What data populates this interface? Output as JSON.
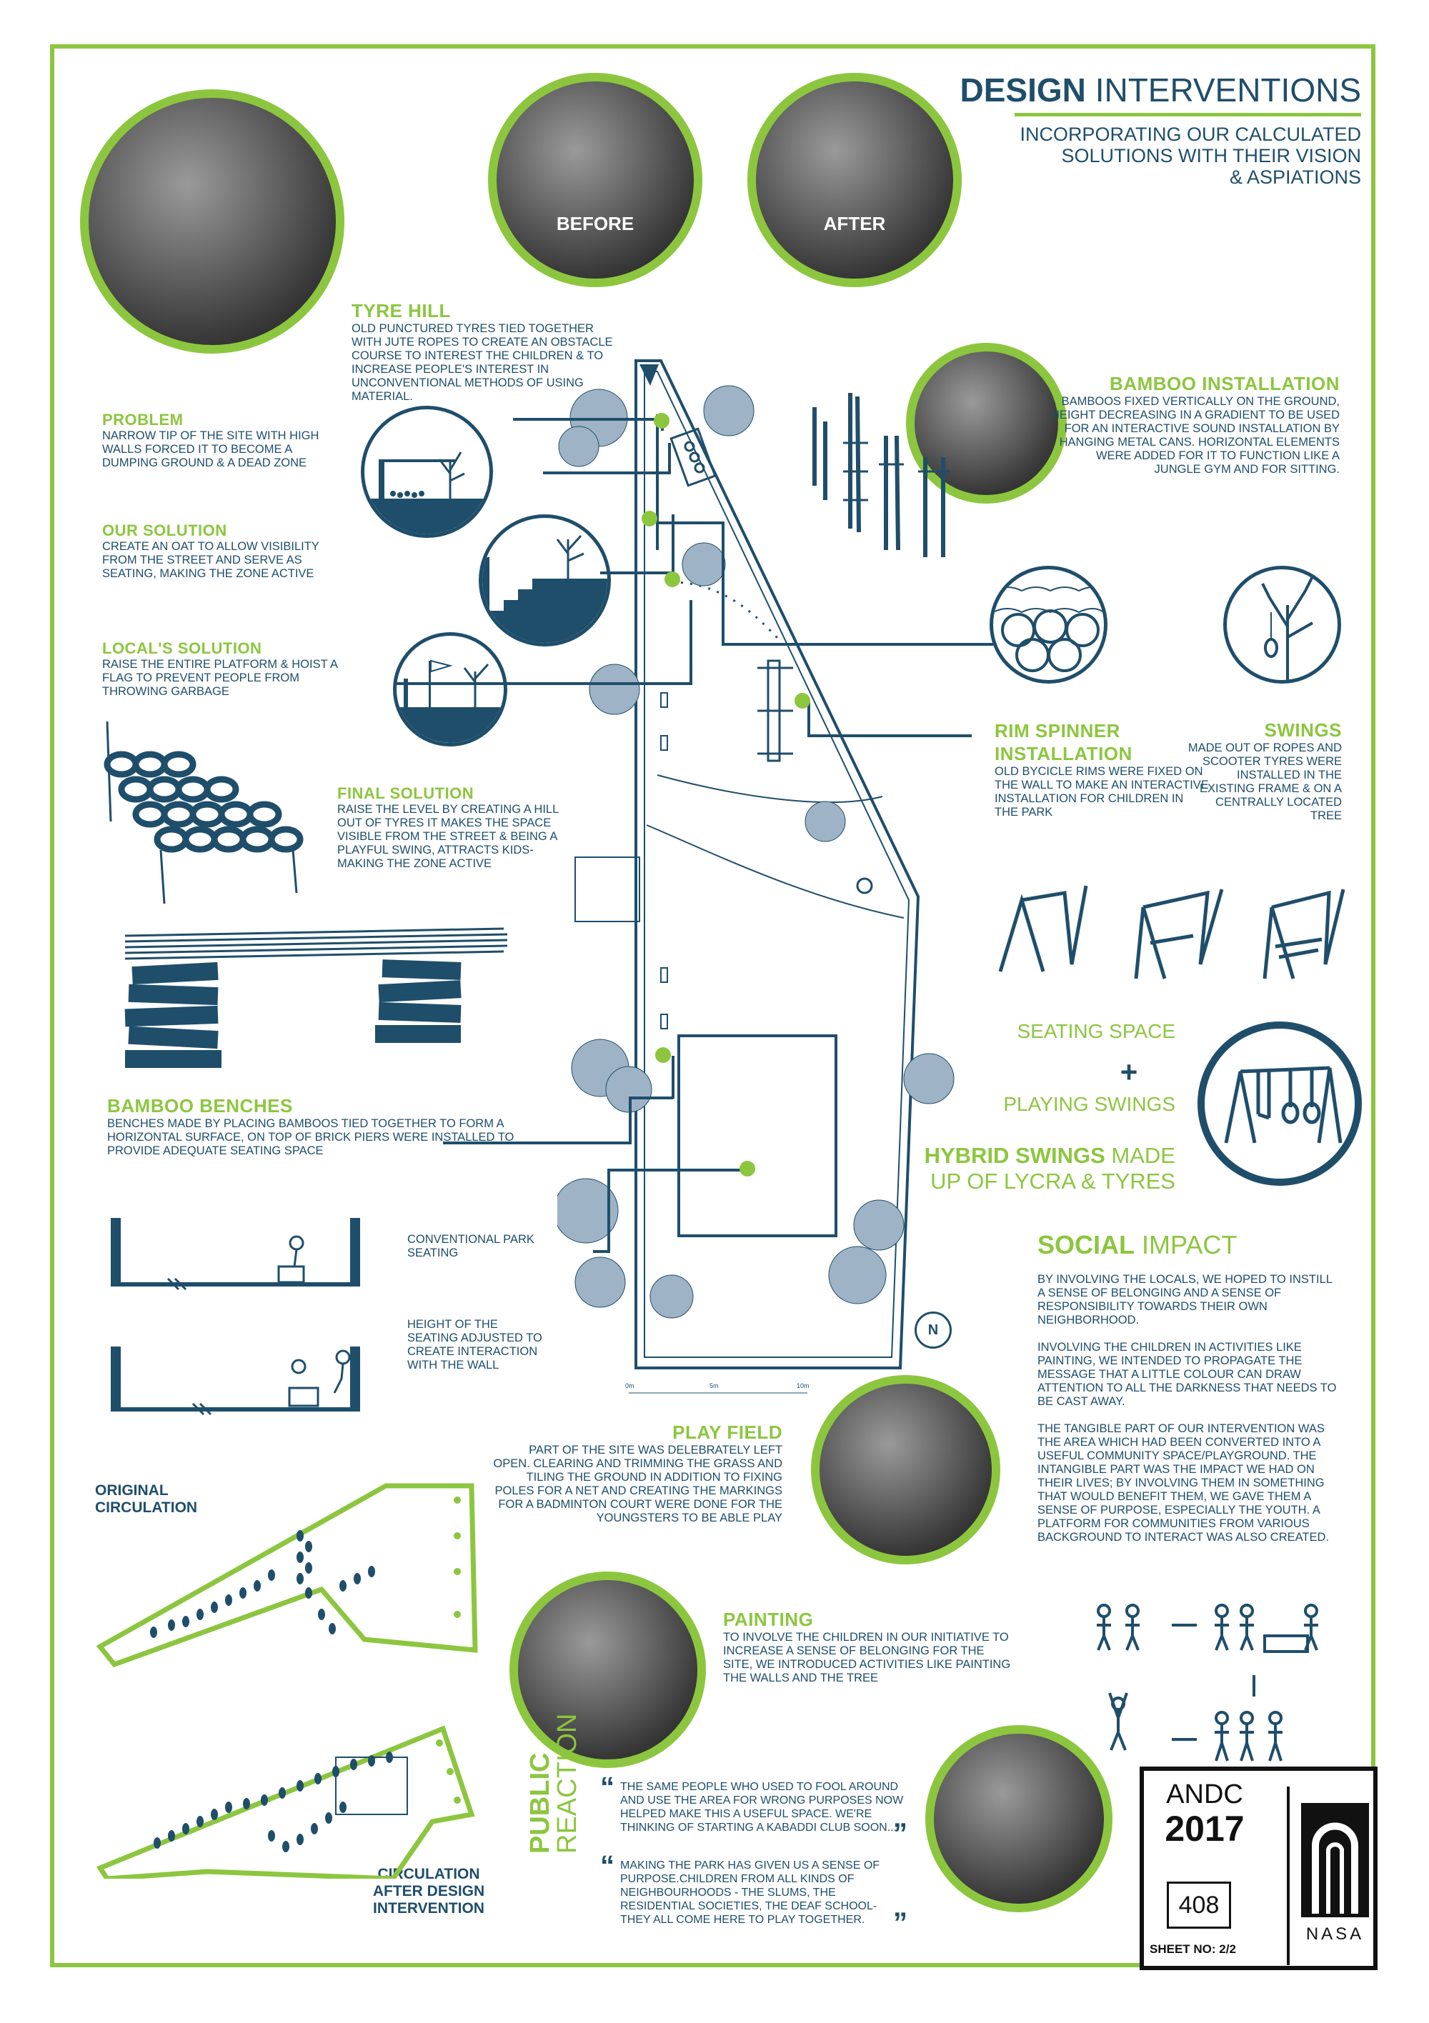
{
  "header": {
    "title_bold": "DESIGN",
    "title_light": "INTERVENTIONS",
    "subtitle": [
      "INCORPORATING OUR CALCULATED",
      "SOLUTIONS WITH THEIR VISION",
      "& ASPIATIONS"
    ]
  },
  "photos": {
    "before_label": "BEFORE",
    "after_label": "AFTER"
  },
  "tyre_hill": {
    "heading": "TYRE HILL",
    "text": "OLD PUNCTURED TYRES TIED TOGETHER WITH JUTE ROPES TO CREATE AN OBSTACLE COURSE TO INTEREST THE CHILDREN & TO INCREASE PEOPLE'S INTEREST IN UNCONVENTIONAL METHODS OF USING MATERIAL."
  },
  "problem": {
    "heading": "PROBLEM",
    "text": "NARROW TIP OF THE SITE WITH HIGH WALLS FORCED IT TO BECOME A DUMPING GROUND & A DEAD ZONE"
  },
  "our_solution": {
    "heading": "OUR SOLUTION",
    "text": "CREATE AN OAT TO ALLOW VISIBILITY FROM THE STREET AND SERVE AS SEATING, MAKING THE ZONE ACTIVE"
  },
  "locals_solution": {
    "heading": "LOCAL'S SOLUTION",
    "text": "RAISE THE ENTIRE PLATFORM & HOIST A FLAG TO PREVENT PEOPLE FROM THROWING GARBAGE"
  },
  "final_solution": {
    "heading": "FINAL SOLUTION",
    "text": "RAISE THE LEVEL BY CREATING A HILL OUT OF TYRES IT MAKES THE SPACE VISIBLE FROM THE STREET & BEING A PLAYFUL SWING, ATTRACTS KIDS-MAKING THE ZONE ACTIVE"
  },
  "bamboo_installation": {
    "heading": "BAMBOO INSTALLATION",
    "text": "BAMBOOS FIXED VERTICALLY ON THE GROUND, HEIGHT DECREASING IN A GRADIENT TO BE USED FOR AN INTERACTIVE SOUND INSTALLATION BY HANGING METAL CANS. HORIZONTAL ELEMENTS WERE ADDED FOR IT TO FUNCTION LIKE A JUNGLE GYM AND FOR SITTING."
  },
  "rim_spinner": {
    "heading": "RIM SPINNER INSTALLATION",
    "text": "OLD BYCICLE RIMS WERE FIXED ON THE WALL TO MAKE AN INTERACTIVE INSTALLATION FOR CHILDREN IN THE PARK"
  },
  "swings": {
    "heading": "SWINGS",
    "text": "MADE OUT OF ROPES AND SCOOTER TYRES WERE INSTALLED IN THE EXISTING FRAME & ON A CENTRALLY LOCATED TREE"
  },
  "hybrid": {
    "seating": "SEATING SPACE",
    "plus": "+",
    "playing": "PLAYING SWINGS",
    "bold": "HYBRID SWINGS",
    "rest1": "MADE",
    "rest2": "UP OF LYCRA & TYRES"
  },
  "bamboo_benches": {
    "heading": "BAMBOO BENCHES",
    "text": "BENCHES MADE BY PLACING BAMBOOS TIED TOGETHER TO FORM A HORIZONTAL SURFACE, ON TOP OF BRICK PIERS WERE INSTALLED TO PROVIDE ADEQUATE SEATING SPACE"
  },
  "seating_notes": {
    "conventional": "CONVENTIONAL PARK SEATING",
    "adjusted": "HEIGHT OF THE SEATING ADJUSTED TO CREATE INTERACTION WITH THE WALL"
  },
  "social_impact": {
    "heading_bold": "SOCIAL",
    "heading_light": "IMPACT",
    "p1": "BY INVOLVING THE LOCALS, WE HOPED TO INSTILL A SENSE OF BELONGING AND A SENSE OF RESPONSIBILITY TOWARDS THEIR OWN NEIGHBORHOOD.",
    "p2": "INVOLVING THE CHILDREN IN ACTIVITIES LIKE PAINTING, WE INTENDED TO PROPAGATE THE MESSAGE THAT A LITTLE COLOUR CAN DRAW ATTENTION TO ALL THE DARKNESS THAT NEEDS TO BE CAST AWAY.",
    "p3": "THE TANGIBLE PART OF OUR INTERVENTION WAS THE AREA WHICH HAD BEEN CONVERTED INTO A USEFUL COMMUNITY SPACE/PLAYGROUND. THE INTANGIBLE PART WAS THE IMPACT WE HAD ON THEIR LIVES; BY INVOLVING THEM IN SOMETHING THAT WOULD BENEFIT THEM, WE GAVE THEM A SENSE OF PURPOSE, ESPECIALLY THE YOUTH. A PLATFORM FOR COMMUNITIES FROM VARIOUS BACKGROUND TO INTERACT WAS ALSO CREATED."
  },
  "play_field": {
    "heading": "PLAY FIELD",
    "text": "PART OF THE SITE WAS DELEBRATELY LEFT OPEN. CLEARING AND TRIMMING THE GRASS AND TILING THE GROUND IN ADDITION TO FIXING POLES FOR A NET AND CREATING THE MARKINGS FOR A BADMINTON COURT WERE DONE FOR THE YOUNGSTERS TO BE ABLE PLAY"
  },
  "painting": {
    "heading": "PAINTING",
    "text": "TO INVOLVE THE CHILDREN IN OUR INITIATIVE TO INCREASE A SENSE OF BELONGING FOR THE SITE, WE INTRODUCED ACTIVITIES LIKE PAINTING THE WALLS AND THE TREE"
  },
  "circulation": {
    "original": [
      "ORIGINAL",
      "CIRCULATION"
    ],
    "after": [
      "CIRCULATION",
      "AFTER DESIGN",
      "INTERVENTION"
    ]
  },
  "public_reaction": {
    "word1": "PUBLIC",
    "word2": "REACTION",
    "quote1": "THE SAME PEOPLE WHO USED TO FOOL AROUND AND USE THE AREA FOR WRONG PURPOSES NOW HELPED MAKE THIS A USEFUL SPACE. WE'RE THINKING OF STARTING A KABADDI CLUB SOON...",
    "quote2": "MAKING THE PARK HAS GIVEN US A SENSE OF PURPOSE.CHILDREN FROM ALL KINDS OF NEIGHBOURHOODS - THE SLUMS, THE RESIDENTIAL SOCIETIES, THE DEAF SCHOOL- THEY ALL COME HERE TO PLAY TOGETHER."
  },
  "scale": {
    "s0": "0m",
    "s1": "5m",
    "s2": "10m"
  },
  "north": "N",
  "title_block": {
    "org": "ANDC",
    "year": "2017",
    "number": "408",
    "sheet": "SHEET NO: 2/2",
    "logo_text": "NASA"
  },
  "colors": {
    "accent": "#8cc63f",
    "navy": "#1f4e6b"
  }
}
